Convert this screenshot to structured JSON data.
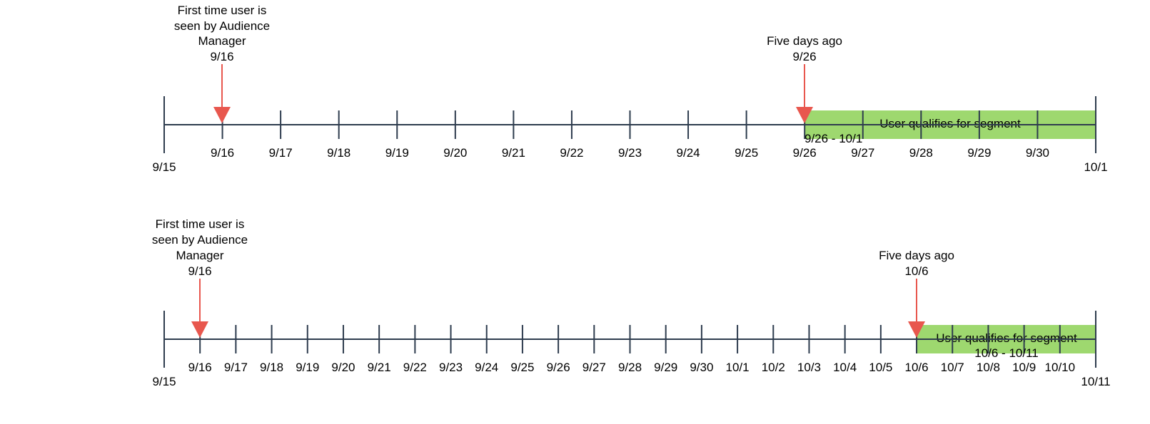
{
  "colors": {
    "axis": "#2e3c4e",
    "arrow": "#e8574e",
    "segment": "#9ed86f"
  },
  "timelines": [
    {
      "start_label": "9/15",
      "end_label": "10/1",
      "ticks": [
        "9/16",
        "9/17",
        "9/18",
        "9/19",
        "9/20",
        "9/21",
        "9/22",
        "9/23",
        "9/24",
        "9/25",
        "9/26",
        "9/27",
        "9/28",
        "9/29",
        "9/30"
      ],
      "first_seen": {
        "lines": [
          "First time user is",
          "seen by Audience",
          "Manager",
          "9/16"
        ]
      },
      "five_days": {
        "lines": [
          "Five days ago",
          "9/26"
        ]
      },
      "segment": {
        "label": "User qualifies for segment",
        "range": "9/26 - 10/1"
      }
    },
    {
      "start_label": "9/15",
      "end_label": "10/11",
      "ticks": [
        "9/16",
        "9/17",
        "9/18",
        "9/19",
        "9/20",
        "9/21",
        "9/22",
        "9/23",
        "9/24",
        "9/25",
        "9/26",
        "9/27",
        "9/28",
        "9/29",
        "9/30",
        "10/1",
        "10/2",
        "10/3",
        "10/4",
        "10/5",
        "10/6",
        "10/7",
        "10/8",
        "10/9",
        "10/10"
      ],
      "first_seen": {
        "lines": [
          "First time user is",
          "seen by Audience",
          "Manager",
          "9/16"
        ]
      },
      "five_days": {
        "lines": [
          "Five days ago",
          "10/6"
        ]
      },
      "segment": {
        "label": "User qualifies for segment",
        "range": "10/6 - 10/11"
      }
    }
  ]
}
